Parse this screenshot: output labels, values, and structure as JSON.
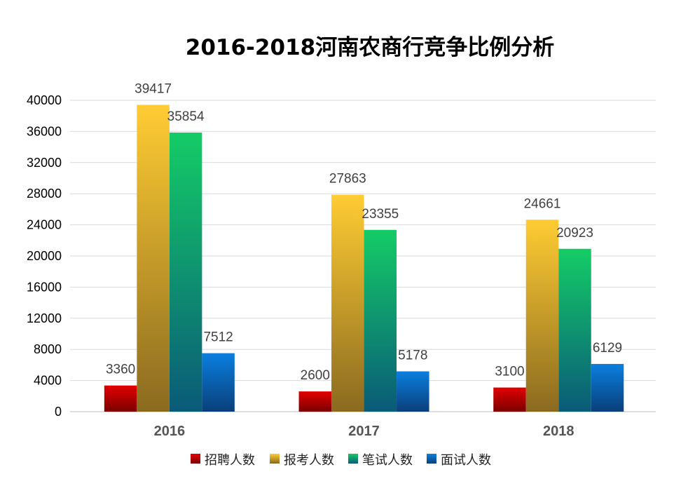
{
  "chart_data": {
    "type": "bar",
    "title": "2016-2018河南农商行竞争比例分析",
    "categories": [
      "2016",
      "2017",
      "2018"
    ],
    "series": [
      {
        "name": "招聘人数",
        "values": [
          3360,
          2600,
          3100
        ],
        "color_top": "#e30000",
        "color_bottom": "#7a0000"
      },
      {
        "name": "报考人数",
        "values": [
          39417,
          27863,
          24661
        ],
        "color_top": "#ffcc33",
        "color_bottom": "#8a6a20"
      },
      {
        "name": "笔试人数",
        "values": [
          35854,
          23355,
          20923
        ],
        "color_top": "#14cc66",
        "color_bottom": "#0a5a78"
      },
      {
        "name": "面试人数",
        "values": [
          7512,
          5178,
          6129
        ],
        "color_top": "#0a7fdf",
        "color_bottom": "#0a3f7a"
      }
    ],
    "ylim": [
      0,
      40000
    ],
    "yticks": [
      0,
      4000,
      8000,
      12000,
      16000,
      20000,
      24000,
      28000,
      32000,
      36000,
      40000
    ],
    "grid": true,
    "legend_position": "bottom"
  }
}
